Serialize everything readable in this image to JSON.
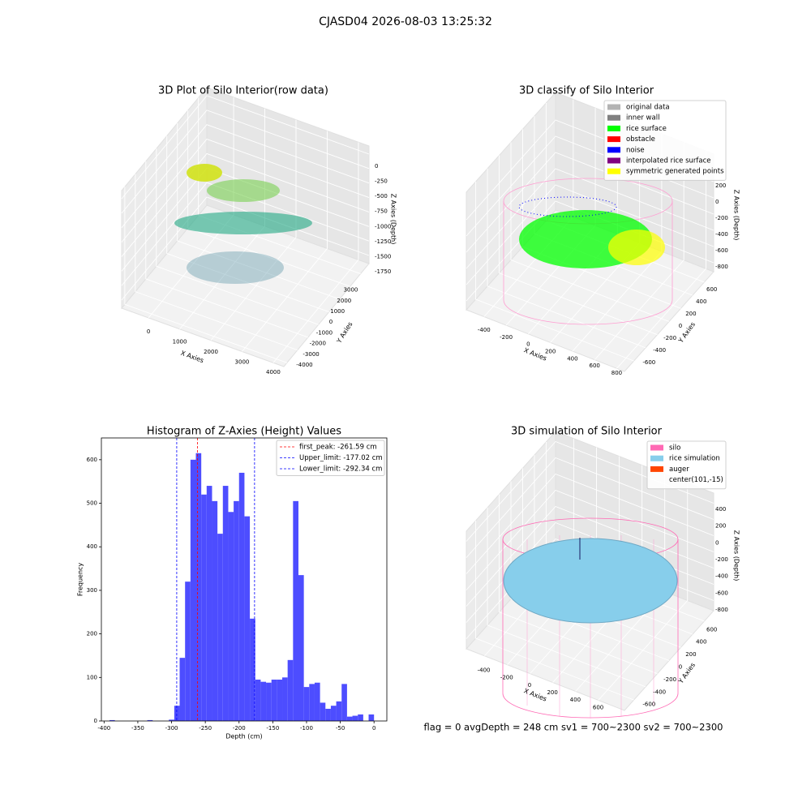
{
  "title": "CJASD04 2026-08-03 13:25:32",
  "footer": "flag = 0     avgDepth = 248 cm  sv1 = 700~2300  sv2 = 700~2300",
  "chart_data": [
    {
      "type": "scatter3d",
      "title": "3D Plot of Silo Interior(row data)",
      "xlabel": "X Axies",
      "ylabel": "Y Axies",
      "zlabel": "Z Axies (Depth)",
      "xlim": [
        -860,
        4340
      ],
      "ylim": [
        -4300,
        3800
      ],
      "zlim": [
        -1890,
        140
      ],
      "xticks": [
        0,
        1000,
        2000,
        3000,
        4000
      ],
      "yticks": [
        -4000,
        -3000,
        -2000,
        -1000,
        0,
        1000,
        2000,
        3000
      ],
      "zticks": [
        -1750,
        -1500,
        -1250,
        -1000,
        -750,
        -500,
        -250,
        0
      ]
    },
    {
      "type": "scatter3d",
      "title": "3D classify of Silo Interior",
      "xlabel": "X Axies",
      "ylabel": "Y Axies",
      "zlabel": "Z Axies (Depth)",
      "xlim": [
        -560,
        870
      ],
      "ylim": [
        -760,
        760
      ],
      "zlim": [
        -910,
        540
      ],
      "xticks": [
        -400,
        -200,
        0,
        200,
        400,
        600,
        800
      ],
      "yticks": [
        -600,
        -400,
        -200,
        0,
        200,
        400,
        600
      ],
      "zticks": [
        -800,
        -600,
        -400,
        -200,
        0,
        200
      ],
      "series": [
        {
          "name": "original data",
          "color": "#b3b3b3"
        },
        {
          "name": "inner wall",
          "color": "#808080"
        },
        {
          "name": "rice surface",
          "color": "#00ff00"
        },
        {
          "name": "obstacle",
          "color": "#ff0000"
        },
        {
          "name": "noise",
          "color": "#0000ff"
        },
        {
          "name": "interpolated rice surface",
          "color": "#800080"
        },
        {
          "name": "symmetric generated points",
          "color": "#ffff00"
        }
      ]
    },
    {
      "type": "histogram",
      "title": "Histogram of Z-Axies (Height) Values",
      "xlabel": "Depth (cm)",
      "ylabel": "Frequency",
      "color": "#4d4dff",
      "bins": [
        -400,
        -392,
        -384,
        -376,
        -368,
        -360,
        -352,
        -344,
        -336,
        -328,
        -320,
        -312,
        -304,
        -296,
        -288,
        -280,
        -272,
        -264,
        -256,
        -248,
        -240,
        -232,
        -224,
        -216,
        -208,
        -200,
        -192,
        -184,
        -176,
        -168,
        -160,
        -152,
        -144,
        -136,
        -128,
        -120,
        -112,
        -104,
        -96,
        -88,
        -80,
        -72,
        -64,
        -56,
        -48,
        -40,
        -32,
        -24,
        -16,
        -8,
        0
      ],
      "values": [
        0,
        2,
        0,
        0,
        0,
        0,
        0,
        0,
        2,
        0,
        0,
        0,
        3,
        35,
        145,
        320,
        600,
        615,
        520,
        540,
        505,
        430,
        540,
        480,
        505,
        570,
        470,
        235,
        95,
        90,
        88,
        95,
        95,
        100,
        140,
        505,
        335,
        78,
        85,
        88,
        42,
        28,
        35,
        45,
        85,
        10,
        12,
        15,
        0,
        15
      ],
      "xlim": [
        -404,
        19
      ],
      "ylim": [
        0,
        650
      ],
      "xticks": [
        -400,
        -350,
        -300,
        -250,
        -200,
        -150,
        -100,
        -50,
        0
      ],
      "yticks": [
        0,
        100,
        200,
        300,
        400,
        500,
        600
      ],
      "vlines": [
        {
          "label": "first_peak: -261.59 cm",
          "value": -261.59,
          "color": "#ff0000"
        },
        {
          "label": "Upper_limit: -177.02 cm",
          "value": -177.02,
          "color": "#0000ff"
        },
        {
          "label": "Lower_limit: -292.34 cm",
          "value": -292.34,
          "color": "#0000ff"
        }
      ]
    },
    {
      "type": "surface3d",
      "title": "3D simulation of Silo Interior",
      "xlabel": "X Axies",
      "ylabel": "Y Axies",
      "zlabel": "Z Axies (Depth)",
      "xlim": [
        -560,
        830
      ],
      "ylim": [
        -760,
        760
      ],
      "zlim": [
        -925,
        525
      ],
      "xticks": [
        -400,
        -200,
        0,
        200,
        400,
        600
      ],
      "yticks": [
        -600,
        -400,
        -200,
        0,
        200,
        400,
        600
      ],
      "zticks": [
        -800,
        -600,
        -400,
        -200,
        0,
        200,
        400
      ],
      "series": [
        {
          "name": "silo",
          "color": "#ff69b4"
        },
        {
          "name": "rice simulation",
          "color": "#87ceeb"
        },
        {
          "name": "auger",
          "color": "#ff4500"
        },
        {
          "name": "center(101,-15)"
        }
      ]
    }
  ]
}
